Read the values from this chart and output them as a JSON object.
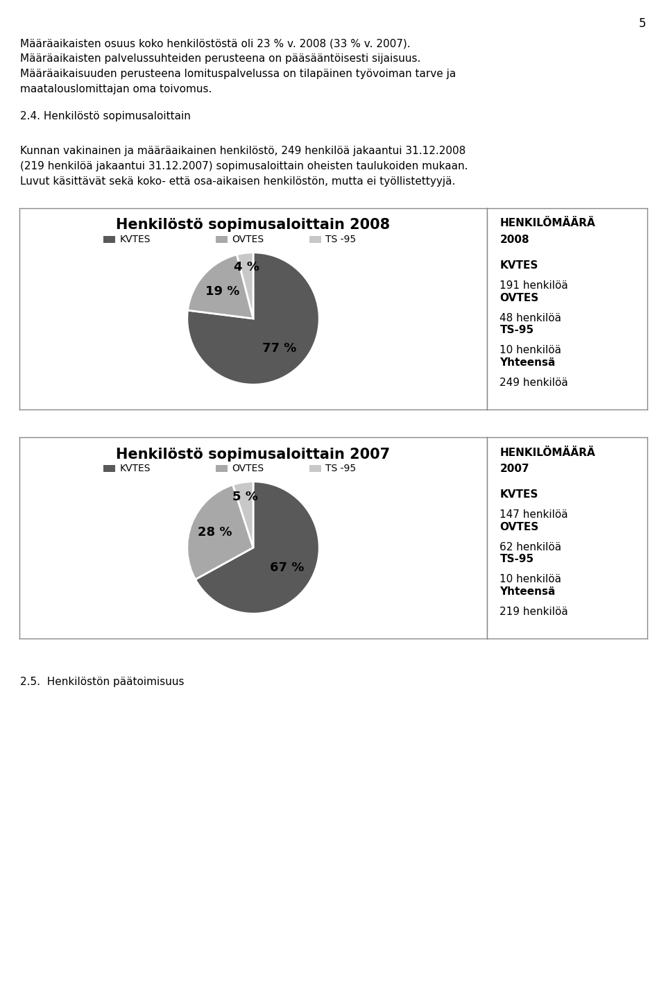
{
  "page_number": "5",
  "header_lines": [
    "Määräaikaisten osuus koko henkilöstöstä oli 23 % v. 2008 (33 % v. 2007).",
    "Määräaikaisten palvelussuhteiden perusteena on pääsääntöisesti sijaisuus.",
    "Määräaikaisuuden perusteena lomituspalvelussa on tilapäinen työvoiman tarve ja",
    "maatalouslomittajan oma toivomus."
  ],
  "section_title": "2.4. Henkilöstö sopimusaloittain",
  "body_lines": [
    "Kunnan vakinainen ja määräaikainen henkilöstö, 249 henkilöä jakaantui 31.12.2008",
    "(219 henkilöä jakaantui 31.12.2007) sopimusaloittain oheisten taulukoiden mukaan.",
    "Luvut käsittävät sekä koko- että osa-aikaisen henkilöstön, mutta ei työllistettyyjä."
  ],
  "footer_text": "2.5.  Henkilöstön päätoimisuus",
  "chart_2008": {
    "title": "Henkilöstö sopimusaloittain 2008",
    "values": [
      77,
      19,
      4
    ],
    "labels": [
      "KVTES",
      "OVTES",
      "TS -95"
    ],
    "colors": [
      "#595959",
      "#a8a8a8",
      "#c8c8c8"
    ],
    "pct_labels": [
      "77 %",
      "19 %",
      "4 %"
    ],
    "info_title_line1": "HENKILÖMÄÄRÄ",
    "info_title_line2": "2008",
    "info_lines": [
      [
        "KVTES",
        "191 henkilöä"
      ],
      [
        "OVTES",
        "48 henkilöä"
      ],
      [
        "TS-95",
        "10 henkilöä"
      ],
      [
        "Yhteensä",
        "249 henkilöä"
      ]
    ]
  },
  "chart_2007": {
    "title": "Henkilöstö sopimusaloittain 2007",
    "values": [
      67,
      28,
      5
    ],
    "labels": [
      "KVTES",
      "OVTES",
      "TS -95"
    ],
    "colors": [
      "#595959",
      "#a8a8a8",
      "#c8c8c8"
    ],
    "pct_labels": [
      "67 %",
      "28 %",
      "5 %"
    ],
    "info_title_line1": "HENKILÖMÄÄRÄ",
    "info_title_line2": "2007",
    "info_lines": [
      [
        "KVTES",
        "147 henkilöä"
      ],
      [
        "OVTES",
        "62 henkilöä"
      ],
      [
        "TS-95",
        "10 henkilöä"
      ],
      [
        "Yhteensä",
        "219 henkilöä"
      ]
    ]
  }
}
